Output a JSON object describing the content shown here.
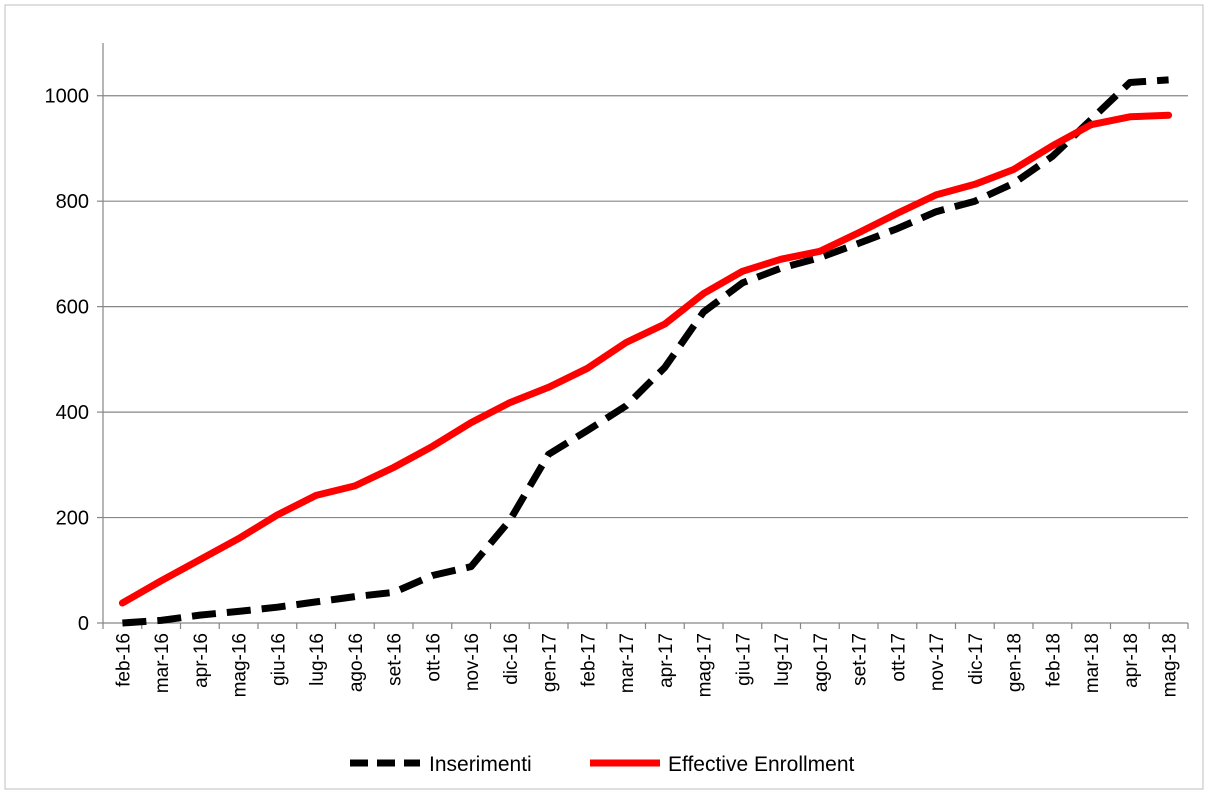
{
  "chart_data": {
    "type": "line",
    "title": "",
    "xlabel": "",
    "ylabel": "",
    "ylim": [
      0,
      1100
    ],
    "yticks": [
      0,
      200,
      400,
      600,
      800,
      1000
    ],
    "grid": "horizontal",
    "legend_position": "bottom",
    "categories": [
      "feb-16",
      "mar-16",
      "apr-16",
      "mag-16",
      "giu-16",
      "lug-16",
      "ago-16",
      "set-16",
      "ott-16",
      "nov-16",
      "dic-16",
      "gen-17",
      "feb-17",
      "mar-17",
      "apr-17",
      "mag-17",
      "giu-17",
      "lug-17",
      "ago-17",
      "set-17",
      "ott-17",
      "nov-17",
      "dic-17",
      "gen-18",
      "feb-18",
      "mar-18",
      "apr-18",
      "mag-18"
    ],
    "series": [
      {
        "name": "Inserimenti",
        "color": "#000000",
        "style": "dashed",
        "values": [
          0,
          5,
          15,
          22,
          30,
          40,
          50,
          58,
          90,
          107,
          195,
          320,
          365,
          412,
          485,
          590,
          645,
          673,
          693,
          720,
          748,
          780,
          800,
          834,
          885,
          955,
          1025,
          1030
        ]
      },
      {
        "name": "Effective Enrollment",
        "color": "#ff0000",
        "style": "solid",
        "values": [
          38,
          80,
          120,
          160,
          205,
          242,
          260,
          295,
          335,
          380,
          418,
          447,
          483,
          532,
          567,
          625,
          667,
          690,
          705,
          740,
          777,
          812,
          832,
          860,
          905,
          945,
          960,
          963
        ]
      }
    ]
  }
}
